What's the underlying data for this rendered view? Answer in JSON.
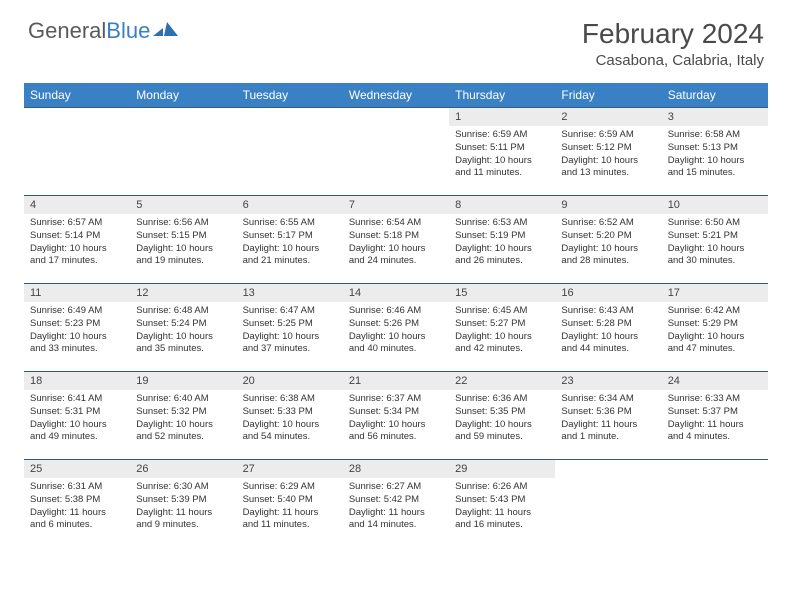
{
  "brand": {
    "part1": "General",
    "part2": "Blue"
  },
  "title": "February 2024",
  "location": "Casabona, Calabria, Italy",
  "colors": {
    "header_bg": "#3a80c4",
    "header_text": "#ffffff",
    "daynum_bg": "#ececec",
    "border": "#3a5a7a",
    "body_text": "#333333",
    "title_text": "#4a4a4a"
  },
  "weekdays": [
    "Sunday",
    "Monday",
    "Tuesday",
    "Wednesday",
    "Thursday",
    "Friday",
    "Saturday"
  ],
  "weeks": [
    [
      {
        "n": "",
        "sr": "",
        "ss": "",
        "dl": "",
        "empty": true
      },
      {
        "n": "",
        "sr": "",
        "ss": "",
        "dl": "",
        "empty": true
      },
      {
        "n": "",
        "sr": "",
        "ss": "",
        "dl": "",
        "empty": true
      },
      {
        "n": "",
        "sr": "",
        "ss": "",
        "dl": "",
        "empty": true
      },
      {
        "n": "1",
        "sr": "Sunrise: 6:59 AM",
        "ss": "Sunset: 5:11 PM",
        "dl": "Daylight: 10 hours and 11 minutes."
      },
      {
        "n": "2",
        "sr": "Sunrise: 6:59 AM",
        "ss": "Sunset: 5:12 PM",
        "dl": "Daylight: 10 hours and 13 minutes."
      },
      {
        "n": "3",
        "sr": "Sunrise: 6:58 AM",
        "ss": "Sunset: 5:13 PM",
        "dl": "Daylight: 10 hours and 15 minutes."
      }
    ],
    [
      {
        "n": "4",
        "sr": "Sunrise: 6:57 AM",
        "ss": "Sunset: 5:14 PM",
        "dl": "Daylight: 10 hours and 17 minutes."
      },
      {
        "n": "5",
        "sr": "Sunrise: 6:56 AM",
        "ss": "Sunset: 5:15 PM",
        "dl": "Daylight: 10 hours and 19 minutes."
      },
      {
        "n": "6",
        "sr": "Sunrise: 6:55 AM",
        "ss": "Sunset: 5:17 PM",
        "dl": "Daylight: 10 hours and 21 minutes."
      },
      {
        "n": "7",
        "sr": "Sunrise: 6:54 AM",
        "ss": "Sunset: 5:18 PM",
        "dl": "Daylight: 10 hours and 24 minutes."
      },
      {
        "n": "8",
        "sr": "Sunrise: 6:53 AM",
        "ss": "Sunset: 5:19 PM",
        "dl": "Daylight: 10 hours and 26 minutes."
      },
      {
        "n": "9",
        "sr": "Sunrise: 6:52 AM",
        "ss": "Sunset: 5:20 PM",
        "dl": "Daylight: 10 hours and 28 minutes."
      },
      {
        "n": "10",
        "sr": "Sunrise: 6:50 AM",
        "ss": "Sunset: 5:21 PM",
        "dl": "Daylight: 10 hours and 30 minutes."
      }
    ],
    [
      {
        "n": "11",
        "sr": "Sunrise: 6:49 AM",
        "ss": "Sunset: 5:23 PM",
        "dl": "Daylight: 10 hours and 33 minutes."
      },
      {
        "n": "12",
        "sr": "Sunrise: 6:48 AM",
        "ss": "Sunset: 5:24 PM",
        "dl": "Daylight: 10 hours and 35 minutes."
      },
      {
        "n": "13",
        "sr": "Sunrise: 6:47 AM",
        "ss": "Sunset: 5:25 PM",
        "dl": "Daylight: 10 hours and 37 minutes."
      },
      {
        "n": "14",
        "sr": "Sunrise: 6:46 AM",
        "ss": "Sunset: 5:26 PM",
        "dl": "Daylight: 10 hours and 40 minutes."
      },
      {
        "n": "15",
        "sr": "Sunrise: 6:45 AM",
        "ss": "Sunset: 5:27 PM",
        "dl": "Daylight: 10 hours and 42 minutes."
      },
      {
        "n": "16",
        "sr": "Sunrise: 6:43 AM",
        "ss": "Sunset: 5:28 PM",
        "dl": "Daylight: 10 hours and 44 minutes."
      },
      {
        "n": "17",
        "sr": "Sunrise: 6:42 AM",
        "ss": "Sunset: 5:29 PM",
        "dl": "Daylight: 10 hours and 47 minutes."
      }
    ],
    [
      {
        "n": "18",
        "sr": "Sunrise: 6:41 AM",
        "ss": "Sunset: 5:31 PM",
        "dl": "Daylight: 10 hours and 49 minutes."
      },
      {
        "n": "19",
        "sr": "Sunrise: 6:40 AM",
        "ss": "Sunset: 5:32 PM",
        "dl": "Daylight: 10 hours and 52 minutes."
      },
      {
        "n": "20",
        "sr": "Sunrise: 6:38 AM",
        "ss": "Sunset: 5:33 PM",
        "dl": "Daylight: 10 hours and 54 minutes."
      },
      {
        "n": "21",
        "sr": "Sunrise: 6:37 AM",
        "ss": "Sunset: 5:34 PM",
        "dl": "Daylight: 10 hours and 56 minutes."
      },
      {
        "n": "22",
        "sr": "Sunrise: 6:36 AM",
        "ss": "Sunset: 5:35 PM",
        "dl": "Daylight: 10 hours and 59 minutes."
      },
      {
        "n": "23",
        "sr": "Sunrise: 6:34 AM",
        "ss": "Sunset: 5:36 PM",
        "dl": "Daylight: 11 hours and 1 minute."
      },
      {
        "n": "24",
        "sr": "Sunrise: 6:33 AM",
        "ss": "Sunset: 5:37 PM",
        "dl": "Daylight: 11 hours and 4 minutes."
      }
    ],
    [
      {
        "n": "25",
        "sr": "Sunrise: 6:31 AM",
        "ss": "Sunset: 5:38 PM",
        "dl": "Daylight: 11 hours and 6 minutes."
      },
      {
        "n": "26",
        "sr": "Sunrise: 6:30 AM",
        "ss": "Sunset: 5:39 PM",
        "dl": "Daylight: 11 hours and 9 minutes."
      },
      {
        "n": "27",
        "sr": "Sunrise: 6:29 AM",
        "ss": "Sunset: 5:40 PM",
        "dl": "Daylight: 11 hours and 11 minutes."
      },
      {
        "n": "28",
        "sr": "Sunrise: 6:27 AM",
        "ss": "Sunset: 5:42 PM",
        "dl": "Daylight: 11 hours and 14 minutes."
      },
      {
        "n": "29",
        "sr": "Sunrise: 6:26 AM",
        "ss": "Sunset: 5:43 PM",
        "dl": "Daylight: 11 hours and 16 minutes."
      },
      {
        "n": "",
        "sr": "",
        "ss": "",
        "dl": "",
        "empty": true
      },
      {
        "n": "",
        "sr": "",
        "ss": "",
        "dl": "",
        "empty": true
      }
    ]
  ]
}
